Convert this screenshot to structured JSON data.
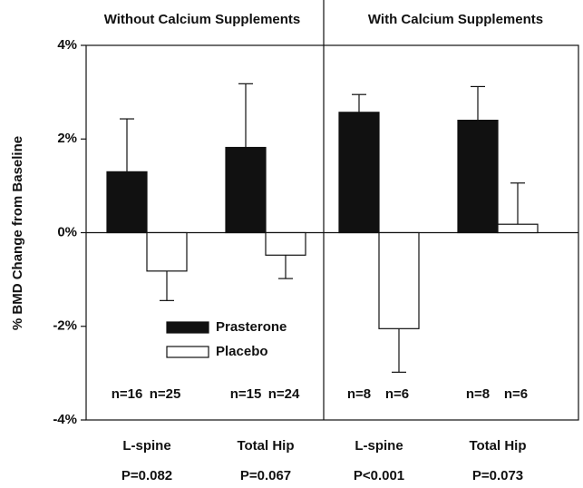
{
  "chart_data": {
    "type": "bar",
    "ylabel": "% BMD Change from Baseline",
    "ylim": [
      -4,
      4
    ],
    "yticks": [
      {
        "value": -4,
        "label": "-4%"
      },
      {
        "value": -2,
        "label": "-2%"
      },
      {
        "value": 0,
        "label": "0%"
      },
      {
        "value": 2,
        "label": "2%"
      },
      {
        "value": 4,
        "label": "4%"
      }
    ],
    "legend": "center",
    "panels": [
      {
        "title": "Without Calcium Supplements",
        "categories": [
          "L-spine",
          "Total Hip"
        ],
        "p_values": [
          "P=0.082",
          "P=0.067"
        ],
        "n_labels": [
          [
            "n=16",
            "n=25"
          ],
          [
            "n=15",
            "n=24"
          ]
        ]
      },
      {
        "title": "With Calcium Supplements",
        "categories": [
          "L-spine",
          "Total Hip"
        ],
        "p_values": [
          "P<0.001",
          "P=0.073"
        ],
        "n_labels": [
          [
            "n=8",
            "n=6"
          ],
          [
            "n=8",
            "n=6"
          ]
        ]
      }
    ],
    "series": [
      {
        "name": "Prasterone",
        "color": "#111111",
        "values": [
          1.3,
          1.82,
          2.57,
          2.4
        ],
        "errors": [
          1.13,
          1.36,
          0.38,
          0.72
        ]
      },
      {
        "name": "Placebo",
        "color": "#ffffff",
        "values": [
          -0.82,
          -0.48,
          -2.05,
          0.18
        ],
        "errors": [
          0.63,
          0.5,
          0.93,
          0.88
        ]
      }
    ]
  }
}
